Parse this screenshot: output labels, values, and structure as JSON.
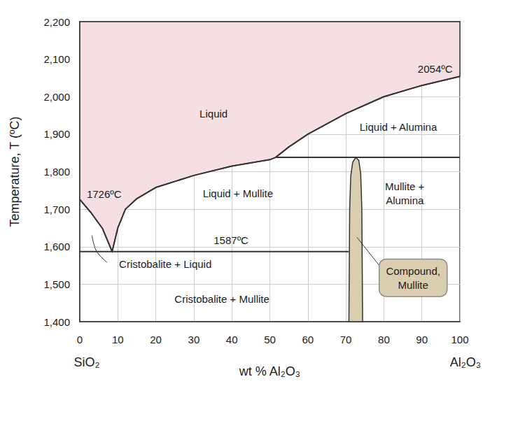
{
  "chart_data": {
    "type": "phase_diagram",
    "xlabel": "wt % Al₂O₃",
    "ylabel": "Temperature, T (ºC)",
    "xlim": [
      0,
      100
    ],
    "ylim": [
      1400,
      2200
    ],
    "xticks": [
      0,
      10,
      20,
      30,
      40,
      50,
      60,
      70,
      80,
      90,
      100
    ],
    "yticks": [
      1400,
      1500,
      1600,
      1700,
      1800,
      1900,
      2000,
      2100,
      2200
    ],
    "grid": true,
    "end_labels": [
      {
        "text": "SiO₂",
        "x": 0
      },
      {
        "text": "Al₂O₃",
        "x": 100
      }
    ],
    "series": [
      {
        "type": "area",
        "color": "#f5dfe2",
        "values": [
          [
            0,
            2200
          ],
          [
            0,
            1726
          ],
          [
            3,
            1690
          ],
          [
            6,
            1648
          ],
          [
            8.5,
            1587
          ],
          [
            10,
            1650
          ],
          [
            12,
            1700
          ],
          [
            15,
            1728
          ],
          [
            20,
            1758
          ],
          [
            30,
            1790
          ],
          [
            40,
            1815
          ],
          [
            50,
            1832
          ],
          [
            51.5,
            1838
          ],
          [
            55,
            1866
          ],
          [
            60,
            1900
          ],
          [
            70,
            1955
          ],
          [
            80,
            2000
          ],
          [
            90,
            2030
          ],
          [
            100,
            2054
          ],
          [
            100,
            2200
          ]
        ]
      },
      {
        "type": "area",
        "color": "#d9cfb0",
        "values": [
          [
            70.8,
            1400
          ],
          [
            71.0,
            1700
          ],
          [
            71.3,
            1790
          ],
          [
            71.8,
            1825
          ],
          [
            72.6,
            1838
          ],
          [
            73.4,
            1830
          ],
          [
            73.9,
            1795
          ],
          [
            74.2,
            1700
          ],
          [
            74.4,
            1400
          ]
        ]
      },
      {
        "type": "line",
        "color": "#333333",
        "values": [
          [
            0,
            1726
          ],
          [
            3,
            1690
          ],
          [
            6,
            1648
          ],
          [
            8.5,
            1587
          ],
          [
            10,
            1650
          ],
          [
            12,
            1700
          ],
          [
            15,
            1728
          ],
          [
            20,
            1758
          ],
          [
            30,
            1790
          ],
          [
            40,
            1815
          ],
          [
            50,
            1832
          ],
          [
            51.5,
            1838
          ]
        ]
      },
      {
        "type": "line",
        "color": "#333333",
        "values": [
          [
            51.5,
            1838
          ],
          [
            55,
            1866
          ],
          [
            60,
            1900
          ],
          [
            70,
            1955
          ],
          [
            80,
            2000
          ],
          [
            90,
            2030
          ],
          [
            100,
            2054
          ]
        ]
      },
      {
        "type": "line",
        "color": "#333333",
        "values": [
          [
            0,
            1587
          ],
          [
            70.8,
            1587
          ]
        ]
      },
      {
        "type": "line",
        "color": "#333333",
        "values": [
          [
            51.5,
            1838
          ],
          [
            100,
            1838
          ]
        ]
      }
    ],
    "annotations": [
      {
        "text": "Liquid",
        "x": 35.2,
        "y": 1954
      },
      {
        "text": "Liquid + Alumina",
        "x": 83.8,
        "y": 1920
      },
      {
        "text": "Liquid + Mullite",
        "x": 41.6,
        "y": 1743
      },
      {
        "text": "Mullite +\nAlumina",
        "x": 85.5,
        "y": 1743
      },
      {
        "text": "1726ºC",
        "x": 6.4,
        "y": 1741
      },
      {
        "text": "2054ºC",
        "x": 93.5,
        "y": 2075
      },
      {
        "text": "1587ºC",
        "x": 39.8,
        "y": 1618
      },
      {
        "text": "Cristobalite + Liquid",
        "x": 22.5,
        "y": 1553,
        "leader": [
          [
            3.2,
            1630
          ],
          [
            4.4,
            1588
          ],
          [
            7.2,
            1558
          ]
        ]
      },
      {
        "text": "Cristobalite + Mullite",
        "x": 37.4,
        "y": 1460
      },
      {
        "text": "Compound,\nMullite",
        "x": 87.7,
        "y": 1517,
        "color": "#d9cfb0",
        "leader": [
          [
            72.9,
            1625
          ],
          [
            80.6,
            1527
          ]
        ]
      }
    ]
  }
}
